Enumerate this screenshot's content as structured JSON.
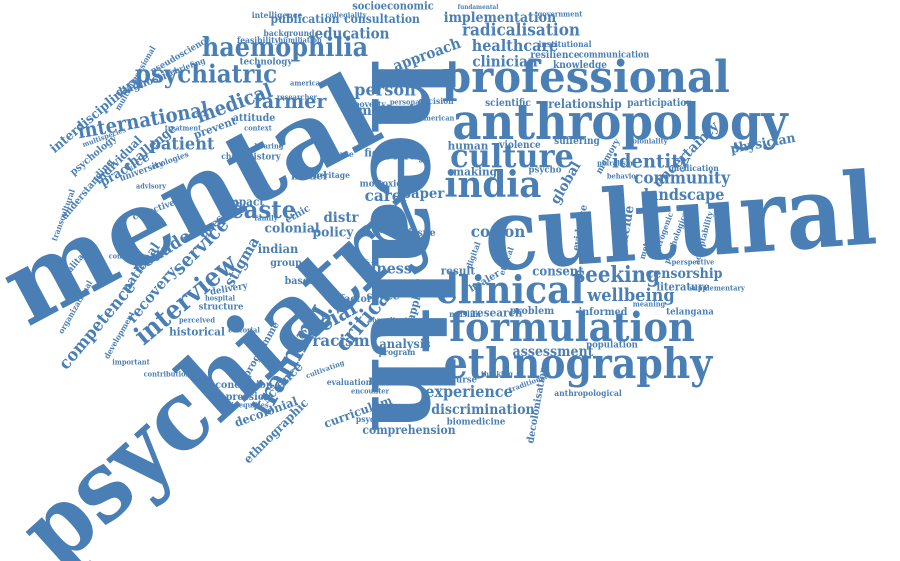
{
  "color": "#4a7fb5",
  "words": {
    "mental": "mental",
    "health": "health",
    "cultural": "cultural",
    "psychiatry": "psychiatry",
    "anthropology": "anthropology",
    "professional": "professional",
    "formulation": "formulation",
    "ethnography": "ethnography",
    "clinical": "clinical",
    "india": "india",
    "culture": "culture",
    "haemophilia": "haemophilia",
    "psychiatric": "psychiatric",
    "interview": "interview",
    "training": "training",
    "international": "international",
    "medical": "medical",
    "patient": "patient",
    "farmer": "farmer",
    "caste": "caste",
    "ecuador": "ecuador",
    "service": "service",
    "recovery": "recovery",
    "national": "national",
    "competence": "competence",
    "stigma": "stigma",
    "social": "social",
    "racism": "racism",
    "critical": "critical",
    "identity": "identity",
    "uncertainty": "uncertainty",
    "physician": "physician",
    "community": "community",
    "landscape": "landscape",
    "wellbeing": "wellbeing",
    "seeking": "seeking",
    "censorship": "censorship",
    "literature": "literature",
    "consent": "consent",
    "cotton": "cotton",
    "assessment": "assessment",
    "experience": "experience",
    "discrimination": "discrimination",
    "comprehension": "comprehension",
    "medicine": "medicine",
    "analysis": "analysis",
    "healthcare": "healthcare",
    "clinician": "clinician",
    "radicalisation": "radicalisation",
    "implementation": "implementation",
    "consultation": "consultation",
    "education": "education",
    "publication": "publication",
    "socioeconomic": "socioeconomic",
    "approach": "approach",
    "person": "person",
    "method": "method",
    "study": "study",
    "care": "care",
    "paper": "paper",
    "making": "making",
    "relationship": "relationship",
    "participation": "participation",
    "knowledge": "knowledge",
    "resilience": "resilience",
    "communication": "communication",
    "scientific": "scientific",
    "suffering": "suffering",
    "violence": "violence",
    "human": "human",
    "global": "global",
    "suicide": "suicide",
    "evidence": "evidence",
    "interdisciplinary": "interdisciplinary",
    "diagnostic": "diagnostic",
    "pseudoscience": "pseudoscience",
    "multidimensional": "multidimensional",
    "psychology": "psychology",
    "individual": "individual",
    "practice": "practice",
    "challenge": "challenge",
    "understanding": "understanding",
    "university": "university",
    "ecologies": "ecologies",
    "collective": "collective",
    "qualitative": "qualitative",
    "question": "question",
    "impact": "impact",
    "colonial": "colonial",
    "ethic": "ethic",
    "policy": "policy",
    "distr": "distr",
    "illness": "illness",
    "trust": "trust",
    "issue": "issue",
    "research": "research",
    "problem": "problem",
    "informed": "informed",
    "population": "population",
    "telangana": "telangana",
    "historical": "historical",
    "conclusion": "conclusion",
    "depression": "depression",
    "decolonial": "decolonial",
    "science": "science",
    "ethnographic": "ethnographic",
    "curriculum": "curriculum",
    "psychiatrist": "psychiatrist",
    "biomedicine": "biomedicine",
    "discourse": "discourse",
    "decolonisation": "decolonisation",
    "anthropological": "anthropological",
    "result": "result",
    "space": "space",
    "model": "model",
    "attitude": "attitude",
    "prevent": "prevent",
    "history": "history",
    "technology": "technology",
    "background": "background",
    "feasibility": "feasibility",
    "intelligence": "intelligence",
    "collegiality": "collegiality",
    "debriefing": "debriefing",
    "poverty": "poverty",
    "decision": "decision",
    "institutional": "institutional",
    "government": "government",
    "fundamental": "fundamental",
    "medication": "medication",
    "behavior": "behavior",
    "advisory": "advisory",
    "psychological": "psychological",
    "acceptability": "acceptability",
    "healer": "healer",
    "digital": "digital",
    "muslim": "muslim",
    "ethical": "ethical",
    "indian": "indian",
    "factor": "factor",
    "delivery": "delivery",
    "structure": "structure",
    "inequities": "inequities",
    "group": "group",
    "based": "based",
    "hospital": "hospital",
    "programme": "programme",
    "evaluation": "evaluation",
    "encounter": "encounter",
    "program": "program",
    "applied": "applied",
    "american": "american",
    "america": "america",
    "researcher": "researcher",
    "committee": "committee",
    "organizational": "organizational",
    "development": "development",
    "perceived": "perceived",
    "contribution": "contribution",
    "treatment": "treatment",
    "memory": "memory",
    "metaphor": "metaphor",
    "iatrogenic": "iatrogenic",
    "pluralism": "pluralism",
    "coloniality": "coloniality",
    "supplementary": "supplementary",
    "perspective": "perspective",
    "traditional": "traditional",
    "humiliation": "humiliation",
    "field": "field",
    "psycho": "psycho",
    "toxic": "toxic",
    "more": "more",
    "heritage": "heritage",
    "acute": "acute",
    "important": "important",
    "choice": "choice",
    "context": "context",
    "hearing": "hearing",
    "family": "family",
    "editorial": "editorial",
    "consultant": "consultant",
    "staff": "staff",
    "cultivating": "cultivating",
    "transcultural": "transcultural",
    "multispecies": "multispecies",
    "cross": "cross",
    "personal": "personal",
    "addr": "addr",
    "thinking": "thinking",
    "meaning": "meaning"
  }
}
